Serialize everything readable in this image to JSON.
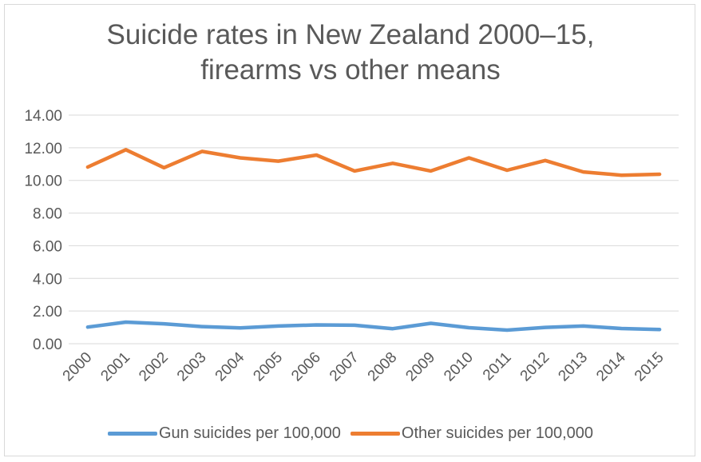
{
  "chart_data": {
    "type": "line",
    "title_line1": "Suicide rates in New Zealand 2000–15,",
    "title_line2": "firearms vs other means",
    "xlabel": "",
    "ylabel": "",
    "ylim": [
      0,
      14
    ],
    "y_ticks": [
      "0.00",
      "2.00",
      "4.00",
      "6.00",
      "8.00",
      "10.00",
      "12.00",
      "14.00"
    ],
    "y_tick_values": [
      0,
      2,
      4,
      6,
      8,
      10,
      12,
      14
    ],
    "categories": [
      "2000",
      "2001",
      "2002",
      "2003",
      "2004",
      "2005",
      "2006",
      "2007",
      "2008",
      "2009",
      "2010",
      "2011",
      "2012",
      "2013",
      "2014",
      "2015"
    ],
    "grid": true,
    "legend_position": "bottom",
    "series": [
      {
        "name": "Gun suicides per 100,000",
        "color": "#5b9bd5",
        "values": [
          1.02,
          1.32,
          1.22,
          1.05,
          0.97,
          1.08,
          1.15,
          1.13,
          0.92,
          1.25,
          0.98,
          0.83,
          1.0,
          1.08,
          0.93,
          0.87
        ]
      },
      {
        "name": "Other suicides per 100,000",
        "color": "#ed7d31",
        "values": [
          10.82,
          11.88,
          10.78,
          11.78,
          11.38,
          11.18,
          11.55,
          10.58,
          11.05,
          10.58,
          11.38,
          10.62,
          11.22,
          10.52,
          10.32,
          10.38
        ]
      }
    ]
  }
}
